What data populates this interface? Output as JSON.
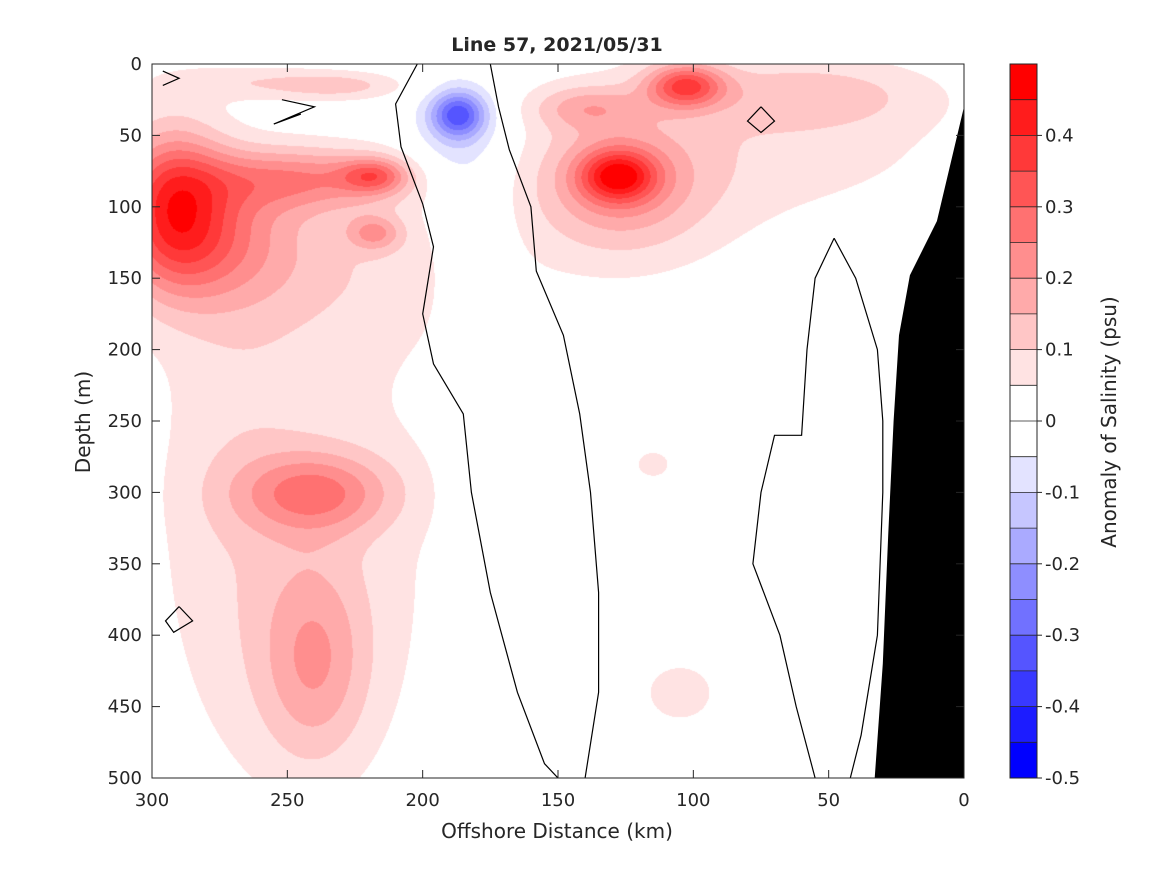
{
  "chart_data": {
    "type": "heatmap",
    "title": "Line 57, 2021/05/31",
    "xlabel": "Offshore Distance (km)",
    "ylabel": "Depth (m)",
    "xlim": [
      300,
      0
    ],
    "ylim": [
      0,
      500
    ],
    "x_reversed": true,
    "y_reversed": true,
    "x_ticks": [
      300,
      250,
      200,
      150,
      100,
      50,
      0
    ],
    "y_ticks": [
      0,
      50,
      100,
      150,
      200,
      250,
      300,
      350,
      400,
      450,
      500
    ],
    "grid": false,
    "colorbar": {
      "label": "Anomaly of Salinity (psu)",
      "range": [
        -0.5,
        0.5
      ],
      "ticks": [
        0.4,
        0.3,
        0.2,
        0.1,
        0,
        -0.1,
        -0.2,
        -0.3,
        -0.4,
        -0.5
      ],
      "levels": [
        {
          "low": 0.45,
          "high": 0.5,
          "color": "#ff0000"
        },
        {
          "low": 0.4,
          "high": 0.45,
          "color": "#ff1c1c"
        },
        {
          "low": 0.35,
          "high": 0.4,
          "color": "#ff3939"
        },
        {
          "low": 0.3,
          "high": 0.35,
          "color": "#ff5555"
        },
        {
          "low": 0.25,
          "high": 0.3,
          "color": "#ff7171"
        },
        {
          "low": 0.2,
          "high": 0.25,
          "color": "#ff8e8e"
        },
        {
          "low": 0.15,
          "high": 0.2,
          "color": "#ffaaaa"
        },
        {
          "low": 0.1,
          "high": 0.15,
          "color": "#ffc6c6"
        },
        {
          "low": 0.05,
          "high": 0.1,
          "color": "#ffe3e3"
        },
        {
          "low": 0,
          "high": 0.05,
          "color": "#ffffff"
        },
        {
          "low": -0.05,
          "high": 0,
          "color": "#ffffff"
        },
        {
          "low": -0.1,
          "high": -0.05,
          "color": "#e3e3ff"
        },
        {
          "low": -0.15,
          "high": -0.1,
          "color": "#c6c6ff"
        },
        {
          "low": -0.2,
          "high": -0.15,
          "color": "#aaaaff"
        },
        {
          "low": -0.25,
          "high": -0.2,
          "color": "#8e8eff"
        },
        {
          "low": -0.3,
          "high": -0.25,
          "color": "#7171ff"
        },
        {
          "low": -0.35,
          "high": -0.3,
          "color": "#5555ff"
        },
        {
          "low": -0.4,
          "high": -0.35,
          "color": "#3939ff"
        },
        {
          "low": -0.45,
          "high": -0.4,
          "color": "#1c1cff"
        },
        {
          "low": -0.5,
          "high": -0.45,
          "color": "#0000ff"
        }
      ]
    },
    "anomaly_blobs": [
      {
        "x": 293,
        "y": 98,
        "rx": 20,
        "ry": 55,
        "v": 0.3
      },
      {
        "x": 278,
        "y": 120,
        "rx": 30,
        "ry": 45,
        "v": 0.15
      },
      {
        "x": 245,
        "y": 80,
        "rx": 40,
        "ry": 22,
        "v": 0.2
      },
      {
        "x": 218,
        "y": 78,
        "rx": 12,
        "ry": 12,
        "v": 0.2
      },
      {
        "x": 218,
        "y": 118,
        "rx": 10,
        "ry": 12,
        "v": 0.15
      },
      {
        "x": 240,
        "y": 140,
        "rx": 70,
        "ry": 60,
        "v": 0.07
      },
      {
        "x": 265,
        "y": 12,
        "rx": 35,
        "ry": 12,
        "v": 0.07
      },
      {
        "x": 230,
        "y": 15,
        "rx": 25,
        "ry": 10,
        "v": 0.1
      },
      {
        "x": 240,
        "y": 300,
        "rx": 28,
        "ry": 28,
        "v": 0.2
      },
      {
        "x": 240,
        "y": 420,
        "rx": 20,
        "ry": 70,
        "v": 0.15
      },
      {
        "x": 235,
        "y": 330,
        "rx": 55,
        "ry": 180,
        "v": 0.07
      },
      {
        "x": 272,
        "y": 290,
        "rx": 30,
        "ry": 210,
        "v": 0.05
      },
      {
        "x": 187,
        "y": 35,
        "rx": 10,
        "ry": 16,
        "v": -0.28
      },
      {
        "x": 187,
        "y": 55,
        "rx": 18,
        "ry": 45,
        "v": -0.1
      },
      {
        "x": 180,
        "y": 140,
        "rx": 13,
        "ry": 50,
        "v": -0.06
      },
      {
        "x": 170,
        "y": 300,
        "rx": 18,
        "ry": 75,
        "v": -0.06
      },
      {
        "x": 128,
        "y": 78,
        "rx": 14,
        "ry": 18,
        "v": 0.3
      },
      {
        "x": 128,
        "y": 85,
        "rx": 30,
        "ry": 45,
        "v": 0.15
      },
      {
        "x": 103,
        "y": 15,
        "rx": 14,
        "ry": 15,
        "v": 0.3
      },
      {
        "x": 115,
        "y": 70,
        "rx": 55,
        "ry": 80,
        "v": 0.07
      },
      {
        "x": 140,
        "y": 30,
        "rx": 20,
        "ry": 15,
        "v": 0.12
      },
      {
        "x": 55,
        "y": 20,
        "rx": 45,
        "ry": 25,
        "v": 0.1
      },
      {
        "x": 45,
        "y": 60,
        "rx": 60,
        "ry": 50,
        "v": 0.05
      },
      {
        "x": 115,
        "y": 280,
        "rx": 12,
        "ry": 18,
        "v": 0.06
      },
      {
        "x": 105,
        "y": 440,
        "rx": 25,
        "ry": 40,
        "v": 0.06
      }
    ],
    "zero_contours": [
      [
        [
          202,
          0
        ],
        [
          210,
          28
        ],
        [
          208,
          58
        ],
        [
          200,
          98
        ],
        [
          196,
          128
        ],
        [
          200,
          175
        ],
        [
          196,
          210
        ],
        [
          185,
          245
        ],
        [
          182,
          300
        ],
        [
          175,
          370
        ],
        [
          165,
          440
        ],
        [
          155,
          490
        ],
        [
          150,
          500
        ]
      ],
      [
        [
          175,
          0
        ],
        [
          172,
          30
        ],
        [
          168,
          60
        ],
        [
          160,
          100
        ],
        [
          158,
          145
        ],
        [
          148,
          190
        ],
        [
          142,
          245
        ],
        [
          138,
          300
        ],
        [
          135,
          370
        ],
        [
          135,
          440
        ],
        [
          140,
          500
        ]
      ],
      [
        [
          48,
          122
        ],
        [
          40,
          150
        ],
        [
          32,
          200
        ],
        [
          30,
          250
        ],
        [
          30,
          300
        ],
        [
          32,
          400
        ],
        [
          38,
          470
        ],
        [
          42,
          500
        ]
      ],
      [
        [
          48,
          122
        ],
        [
          55,
          150
        ],
        [
          58,
          200
        ],
        [
          60,
          260
        ],
        [
          70,
          260
        ],
        [
          75,
          300
        ],
        [
          78,
          350
        ],
        [
          68,
          400
        ],
        [
          62,
          450
        ],
        [
          55,
          500
        ]
      ],
      [
        [
          75,
          30
        ],
        [
          70,
          40
        ],
        [
          75,
          48
        ],
        [
          80,
          40
        ],
        [
          75,
          30
        ]
      ],
      [
        [
          252,
          25
        ],
        [
          240,
          30
        ],
        [
          255,
          42
        ],
        [
          245,
          35
        ]
      ],
      [
        [
          290,
          380
        ],
        [
          285,
          390
        ],
        [
          292,
          398
        ],
        [
          295,
          390
        ],
        [
          290,
          380
        ]
      ],
      [
        [
          296,
          5
        ],
        [
          290,
          10
        ],
        [
          296,
          15
        ]
      ]
    ],
    "coastline": [
      [
        0,
        30
      ],
      [
        0,
        500
      ],
      [
        33,
        500
      ],
      [
        30,
        420
      ],
      [
        28,
        330
      ],
      [
        26,
        250
      ],
      [
        24,
        190
      ],
      [
        20,
        148
      ],
      [
        10,
        110
      ],
      [
        0,
        30
      ]
    ]
  }
}
